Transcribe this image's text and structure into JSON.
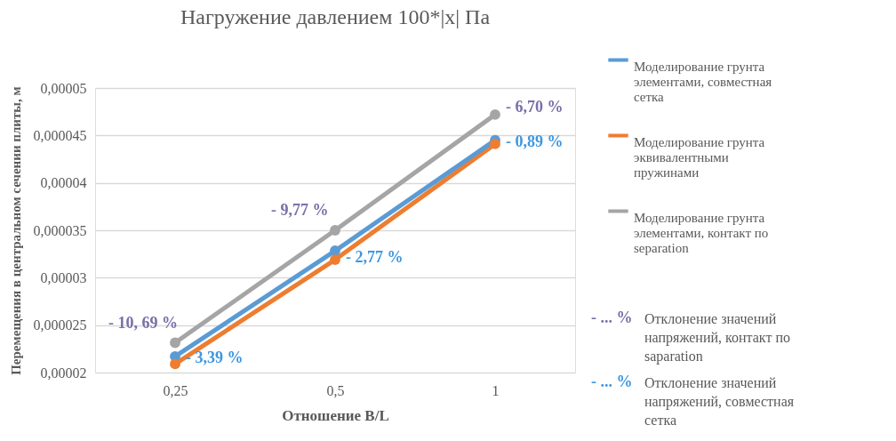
{
  "chart_data": {
    "type": "line",
    "title": "Нагружение давлением 100*|x| Па",
    "xlabel": "Отношение B/L",
    "ylabel": "Перемещения в центральном сечении плиты, м",
    "categories": [
      "0,25",
      "0,5",
      "1"
    ],
    "series": [
      {
        "name": "Моделирование грунта элементами, совместная сетка",
        "color": "#5b9bd5",
        "values": [
          2.17e-05,
          3.284e-05,
          4.45e-05
        ]
      },
      {
        "name": "Моделирование грунта эквивалентными пружинами",
        "color": "#ed7d31",
        "values": [
          2.09e-05,
          3.19e-05,
          4.41e-05
        ]
      },
      {
        "name": "Моделирование грунта элементами, контакт по separation",
        "color": "#a5a5a5",
        "values": [
          2.314e-05,
          3.5e-05,
          4.72e-05
        ]
      }
    ],
    "ylim": [
      2e-05,
      5e-05
    ],
    "yticks": [
      {
        "value": 2e-05,
        "label": "0,00002"
      },
      {
        "value": 2.5e-05,
        "label": "0,000025"
      },
      {
        "value": 3e-05,
        "label": "0,00003"
      },
      {
        "value": 3.5e-05,
        "label": "0,000035"
      },
      {
        "value": 4e-05,
        "label": "0,00004"
      },
      {
        "value": 4.5e-05,
        "label": "0,000045"
      },
      {
        "value": 5e-05,
        "label": "0,00005"
      }
    ],
    "grid": "y",
    "marker": "circle",
    "legend": "right",
    "annotations": [
      {
        "text": "- 10, 69 %",
        "x": "0,25",
        "y": 2.314e-05
      },
      {
        "text": "- 3,39 %",
        "x": "0,25",
        "y": 2.17e-05
      },
      {
        "text": "- 9,77 %",
        "x": "0,5",
        "y": 3.5e-05
      },
      {
        "text": "- 2,77 %",
        "x": "0,5",
        "y": 3.284e-05
      },
      {
        "text": "- 6,70 %",
        "x": "1",
        "y": 4.72e-05
      },
      {
        "text": "- 0,89 %",
        "x": "1",
        "y": 4.45e-05
      },
      "- ... %",
      "Отклонение значений напряжений, контакт по saparation",
      "- ... %",
      "Отклонение значений напряжений, совместная сетка"
    ]
  }
}
